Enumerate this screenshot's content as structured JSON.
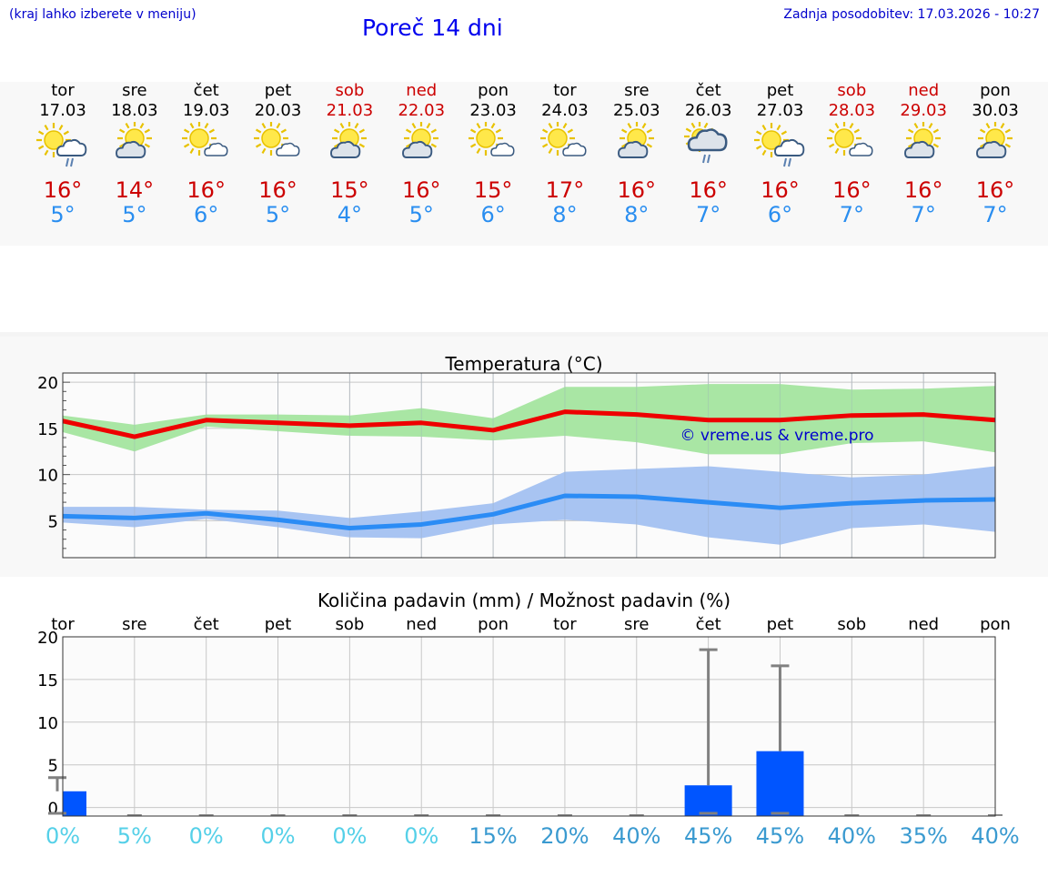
{
  "header": {
    "hint": "(kraj lahko izberete v meniju)",
    "title": "Poreč 14 dni",
    "updated": "Zadnja posodobitev: 17.03.2026 - 10:27"
  },
  "days": [
    {
      "name": "tor",
      "date": "17.03",
      "weekend": false,
      "icon": "sun-cloud-rain-icon",
      "tmax": "16°",
      "tmin": "5°"
    },
    {
      "name": "sre",
      "date": "18.03",
      "weekend": false,
      "icon": "sun-cloud-icon",
      "tmax": "14°",
      "tmin": "5°"
    },
    {
      "name": "čet",
      "date": "19.03",
      "weekend": false,
      "icon": "sun-small-cloud-icon",
      "tmax": "16°",
      "tmin": "6°"
    },
    {
      "name": "pet",
      "date": "20.03",
      "weekend": false,
      "icon": "sun-small-cloud-icon",
      "tmax": "16°",
      "tmin": "5°"
    },
    {
      "name": "sob",
      "date": "21.03",
      "weekend": true,
      "icon": "sun-cloud-icon",
      "tmax": "15°",
      "tmin": "4°"
    },
    {
      "name": "ned",
      "date": "22.03",
      "weekend": true,
      "icon": "sun-cloud-icon",
      "tmax": "16°",
      "tmin": "5°"
    },
    {
      "name": "pon",
      "date": "23.03",
      "weekend": false,
      "icon": "sun-small-cloud-icon",
      "tmax": "15°",
      "tmin": "6°"
    },
    {
      "name": "tor",
      "date": "24.03",
      "weekend": false,
      "icon": "sun-small-cloud-icon",
      "tmax": "17°",
      "tmin": "8°"
    },
    {
      "name": "sre",
      "date": "25.03",
      "weekend": false,
      "icon": "sun-cloud-icon",
      "tmax": "16°",
      "tmin": "8°"
    },
    {
      "name": "čet",
      "date": "26.03",
      "weekend": false,
      "icon": "cloud-sun-rain-icon",
      "tmax": "16°",
      "tmin": "7°"
    },
    {
      "name": "pet",
      "date": "27.03",
      "weekend": false,
      "icon": "sun-cloud-rain-icon",
      "tmax": "16°",
      "tmin": "6°"
    },
    {
      "name": "sob",
      "date": "28.03",
      "weekend": true,
      "icon": "sun-small-cloud-icon",
      "tmax": "16°",
      "tmin": "7°"
    },
    {
      "name": "ned",
      "date": "29.03",
      "weekend": true,
      "icon": "sun-cloud-icon",
      "tmax": "16°",
      "tmin": "7°"
    },
    {
      "name": "pon",
      "date": "30.03",
      "weekend": false,
      "icon": "sun-cloud-icon",
      "tmax": "16°",
      "tmin": "7°"
    }
  ],
  "colors": {
    "weekend": "#cc0000",
    "max_temp": "#cc0000",
    "min_temp": "#2a8ef0",
    "max_line": "#ee0000",
    "max_band": "#a9e6a4",
    "min_line": "#2b8cf5",
    "min_band": "#a8c4f2",
    "bar": "#0055ff",
    "watermark": "#0000cc",
    "prob_low": "#55d0e8",
    "prob_high": "#3a9ad0"
  },
  "chart_data": [
    {
      "type": "line",
      "title": "Temperatura (°C)",
      "watermark": "© vreme.us & vreme.pro",
      "ylim": [
        1,
        21
      ],
      "yticks": [
        5,
        10,
        15,
        20
      ],
      "x": [
        0,
        1,
        2,
        3,
        4,
        5,
        6,
        7,
        8,
        9,
        10,
        11,
        12,
        13
      ],
      "series": [
        {
          "name": "max",
          "values": [
            15.8,
            14.1,
            15.9,
            15.6,
            15.3,
            15.6,
            14.8,
            16.8,
            16.5,
            15.9,
            15.9,
            16.4,
            16.5,
            15.9
          ],
          "band_low": [
            14.6,
            12.5,
            15.2,
            14.7,
            14.2,
            14.1,
            13.7,
            14.2,
            13.5,
            12.2,
            12.2,
            13.4,
            13.6,
            12.4
          ],
          "band_high": [
            16.4,
            15.4,
            16.5,
            16.5,
            16.4,
            17.2,
            16.1,
            19.5,
            19.5,
            19.8,
            19.8,
            19.2,
            19.3,
            19.6
          ]
        },
        {
          "name": "min",
          "values": [
            5.5,
            5.3,
            5.8,
            5.1,
            4.2,
            4.6,
            5.7,
            7.7,
            7.6,
            7.0,
            6.4,
            6.9,
            7.2,
            7.3
          ],
          "band_low": [
            4.8,
            4.3,
            5.2,
            4.3,
            3.2,
            3.1,
            4.6,
            5.1,
            4.6,
            3.2,
            2.4,
            4.2,
            4.6,
            3.8
          ],
          "band_high": [
            6.5,
            6.5,
            6.2,
            6.1,
            5.3,
            6.0,
            6.9,
            10.3,
            10.6,
            10.9,
            10.3,
            9.7,
            10.0,
            10.9
          ]
        }
      ]
    },
    {
      "type": "bar",
      "title": "Količina padavin (mm) / Možnost padavin (%)",
      "categories": [
        "tor",
        "sre",
        "čet",
        "pet",
        "sob",
        "ned",
        "pon",
        "tor",
        "sre",
        "čet",
        "pet",
        "sob",
        "ned",
        "pon"
      ],
      "ylim": [
        -1,
        20
      ],
      "yticks": [
        0,
        5,
        10,
        15,
        20
      ],
      "values": [
        1.9,
        0,
        0,
        0,
        0,
        0,
        0,
        0,
        0,
        2.6,
        6.6,
        0,
        0,
        0
      ],
      "error_max": [
        3.5,
        0,
        0,
        0,
        0,
        0,
        0,
        0,
        0,
        18.5,
        16.6,
        0,
        0,
        0
      ],
      "probability": [
        "0%",
        "5%",
        "0%",
        "0%",
        "0%",
        "0%",
        "15%",
        "20%",
        "40%",
        "45%",
        "45%",
        "40%",
        "35%",
        "40%"
      ]
    }
  ]
}
